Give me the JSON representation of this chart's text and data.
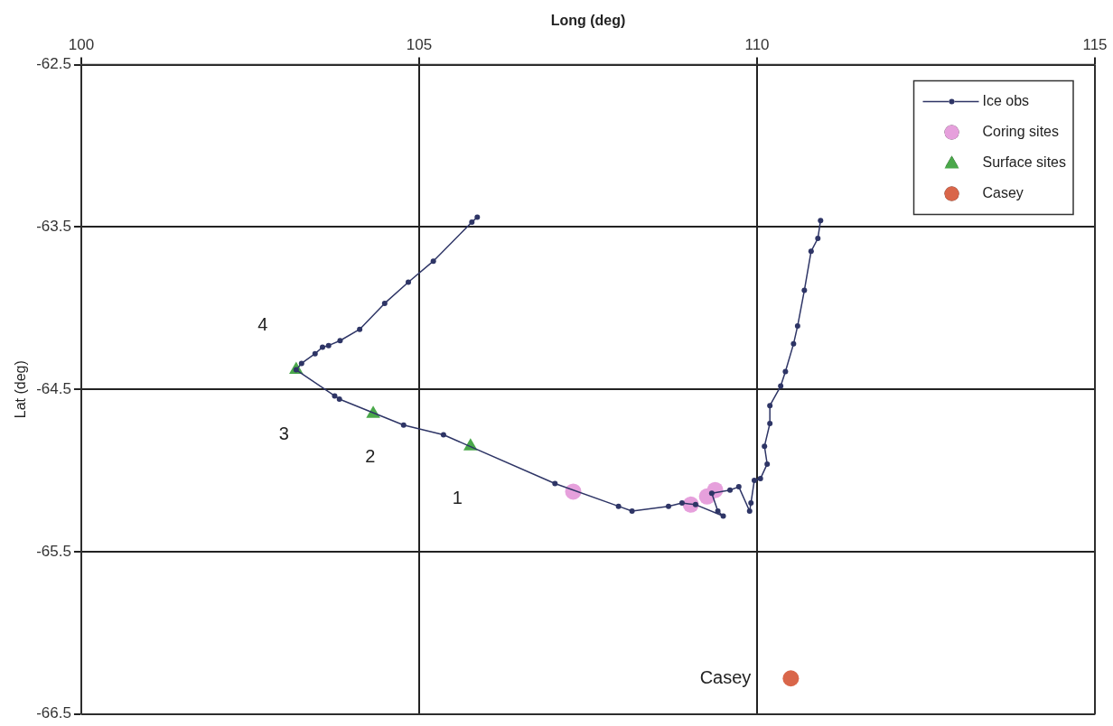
{
  "chart_data": {
    "type": "scatter",
    "xlabel": "Long (deg)",
    "ylabel": "Lat (deg)",
    "xlim": [
      100,
      115
    ],
    "xticks": [
      100,
      105,
      110,
      115
    ],
    "ylim": [
      -66.5,
      -62.5
    ],
    "yticks": [
      -62.5,
      -63.5,
      -64.5,
      -65.5,
      -66.5
    ],
    "grid": true,
    "legend": "top right",
    "series": [
      {
        "name": "Ice obs",
        "type": "line",
        "marker": "circle",
        "color": "#2e3566",
        "x": [
          105.86,
          105.78,
          105.21,
          104.84,
          104.49,
          104.12,
          103.83,
          103.66,
          103.57,
          103.46,
          103.26,
          103.18,
          103.75,
          103.82,
          104.77,
          105.36,
          107.01,
          107.95,
          108.15,
          108.69,
          108.89,
          109.09,
          109.5,
          109.42,
          109.33,
          109.6,
          109.73,
          109.89,
          109.91,
          109.96,
          110.05,
          110.15,
          110.11,
          110.19,
          110.19,
          110.35,
          110.42,
          110.54,
          110.6,
          110.7,
          110.8,
          110.9,
          110.94
        ],
        "values": [
          -63.44,
          -63.47,
          -63.71,
          -63.84,
          -63.97,
          -64.13,
          -64.2,
          -64.23,
          -64.24,
          -64.28,
          -64.34,
          -64.38,
          -64.54,
          -64.56,
          -64.72,
          -64.78,
          -65.08,
          -65.22,
          -65.25,
          -65.22,
          -65.2,
          -65.21,
          -65.28,
          -65.25,
          -65.14,
          -65.12,
          -65.1,
          -65.25,
          -65.2,
          -65.06,
          -65.05,
          -64.96,
          -64.85,
          -64.71,
          -64.6,
          -64.48,
          -64.39,
          -64.22,
          -64.11,
          -63.89,
          -63.65,
          -63.57,
          -63.46
        ]
      },
      {
        "name": "Coring sites",
        "type": "scatter",
        "marker": "circle",
        "color": "#e6a0dc",
        "x": [
          107.28,
          109.02,
          109.26,
          109.38
        ],
        "values": [
          -65.13,
          -65.21,
          -65.16,
          -65.12
        ]
      },
      {
        "name": "Surface sites",
        "type": "scatter",
        "marker": "triangle",
        "color": "#4aa84a",
        "x": [
          103.18,
          104.32,
          105.76
        ],
        "values": [
          -64.38,
          -64.65,
          -64.85
        ]
      },
      {
        "name": "Casey",
        "type": "scatter",
        "marker": "circle",
        "color": "#d9664a",
        "x": [
          110.5
        ],
        "values": [
          -66.28
        ]
      }
    ],
    "annotations": [
      "4",
      "3",
      "2",
      "1",
      {
        "text": "Casey",
        "x": 110.5,
        "y": -66.28
      }
    ]
  }
}
